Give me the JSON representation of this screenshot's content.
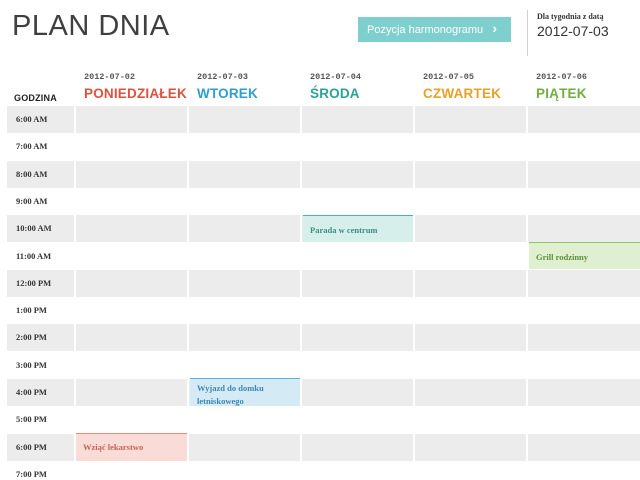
{
  "header": {
    "title": "PLAN DNIA",
    "schedule_button_label": "Pozycja harmonogramu",
    "week_label": "Dla tygodnia z datą",
    "week_date": "2012-07-03"
  },
  "grid": {
    "hours_header": "GODZINA",
    "days": [
      {
        "date": "2012-07-02",
        "name": "PONIEDZIAŁEK",
        "color": "#d9533f"
      },
      {
        "date": "2012-07-03",
        "name": "WTOREK",
        "color": "#2f9fd3"
      },
      {
        "date": "2012-07-04",
        "name": "ŚRODA",
        "color": "#29a394"
      },
      {
        "date": "2012-07-05",
        "name": "CZWARTEK",
        "color": "#e8a127"
      },
      {
        "date": "2012-07-06",
        "name": "PIĄTEK",
        "color": "#6fae3f"
      }
    ],
    "hours": [
      "6:00 AM",
      "7:00 AM",
      "8:00 AM",
      "9:00 AM",
      "10:00 AM",
      "11:00 AM",
      "12:00 PM",
      "1:00 PM",
      "2:00 PM",
      "3:00 PM",
      "4:00 PM",
      "5:00 PM",
      "6:00 PM",
      "7:00 PM"
    ]
  },
  "events": {
    "parade": "Parada w centrum",
    "grill": "Grill rodzinny",
    "trip": "Wyjazd do domku letniskowego",
    "medicine": "Wziąć lekarstwo"
  },
  "icons": {
    "schedule_button_icon": "chevron-right-icon"
  }
}
